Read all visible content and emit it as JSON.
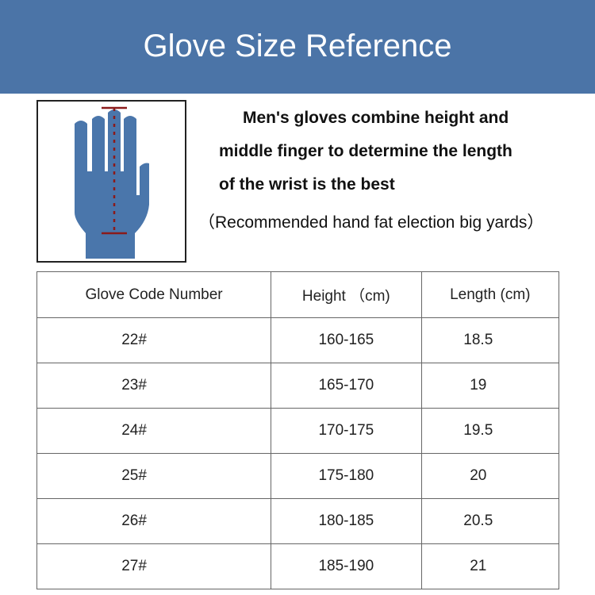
{
  "title": "Glove Size Reference",
  "description": [
    "Men's gloves combine height and",
    "middle finger to determine the length",
    "of the wrist is the best"
  ],
  "note": "（Recommended hand fat election big yards）",
  "hand_illustration": {
    "icon": "hand-measurement-icon",
    "hand_color": "#4a76ab",
    "measure_color": "#8b1a1a"
  },
  "table": {
    "headers": [
      "Glove Code Number",
      "Height （cm)",
      "Length (cm)"
    ],
    "rows": [
      [
        "22#",
        "160-165",
        "18.5"
      ],
      [
        "23#",
        "165-170",
        "19"
      ],
      [
        "24#",
        "170-175",
        "19.5"
      ],
      [
        "25#",
        "175-180",
        "20"
      ],
      [
        "26#",
        "180-185",
        "20.5"
      ],
      [
        "27#",
        "185-190",
        "21"
      ]
    ]
  }
}
